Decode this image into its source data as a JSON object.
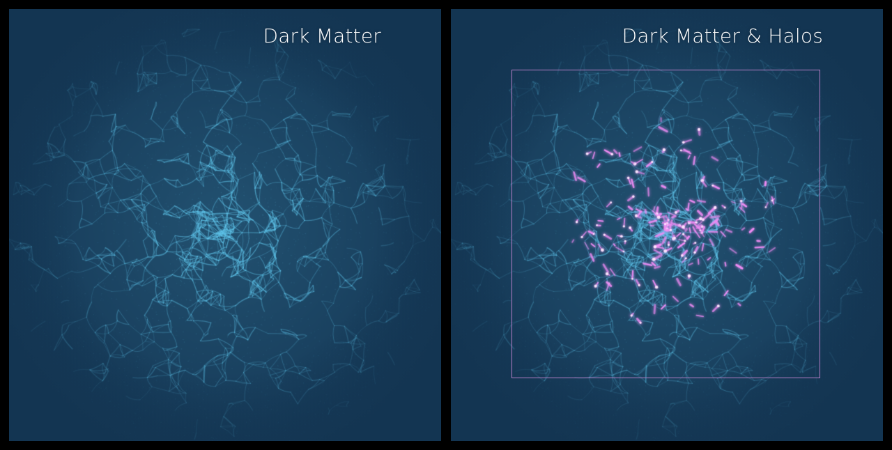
{
  "panels": [
    {
      "title": "Dark Matter",
      "show_halos": false,
      "show_box": false
    },
    {
      "title": "Dark Matter & Halos",
      "show_halos": true,
      "show_box": true
    }
  ],
  "colors": {
    "page_background": "#000000",
    "field_background": "#163a58",
    "filament": "#5fc4ea",
    "halo": "#f08cf5",
    "box_outline": "#b57fc7",
    "title_text": "#ffffff"
  }
}
